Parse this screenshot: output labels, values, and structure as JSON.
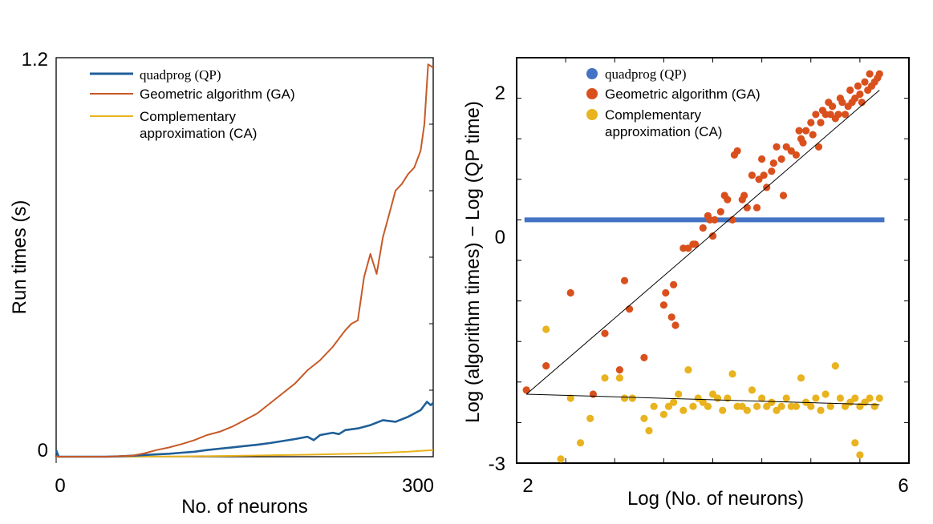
{
  "chart_data": [
    {
      "type": "line",
      "title": "",
      "xlabel": "No. of neurons",
      "ylabel": "Run times (s)",
      "xlim": [
        0,
        300
      ],
      "ylim": [
        0,
        1.2
      ],
      "x_ticks": [
        "0",
        "300"
      ],
      "y_ticks": [
        "0",
        "1.2"
      ],
      "grid": false,
      "legend_placement": "top-left",
      "series": [
        {
          "name": "quadprog (QP)",
          "color": "#1f5f99",
          "x": [
            0,
            2,
            4,
            10,
            20,
            30,
            40,
            50,
            60,
            70,
            80,
            90,
            100,
            110,
            120,
            130,
            140,
            150,
            160,
            170,
            180,
            190,
            200,
            205,
            210,
            220,
            225,
            230,
            240,
            250,
            260,
            270,
            280,
            290,
            295,
            298,
            300
          ],
          "y": [
            0.02,
            0.0,
            0.0,
            0.0,
            0.0,
            0.0,
            0.0,
            0.001,
            0.003,
            0.005,
            0.007,
            0.009,
            0.012,
            0.015,
            0.02,
            0.024,
            0.028,
            0.032,
            0.036,
            0.041,
            0.047,
            0.053,
            0.06,
            0.05,
            0.065,
            0.072,
            0.068,
            0.08,
            0.085,
            0.095,
            0.11,
            0.105,
            0.12,
            0.14,
            0.165,
            0.155,
            0.162
          ]
        },
        {
          "name": "Geometric algorithm (GA)",
          "color": "#c65a28",
          "x": [
            0,
            20,
            40,
            60,
            70,
            80,
            90,
            100,
            110,
            120,
            130,
            140,
            150,
            160,
            170,
            180,
            190,
            200,
            210,
            220,
            230,
            235,
            240,
            245,
            250,
            255,
            260,
            265,
            270,
            275,
            280,
            285,
            290,
            293,
            296,
            300
          ],
          "y": [
            0.0,
            0.0,
            0.0,
            0.003,
            0.01,
            0.02,
            0.028,
            0.038,
            0.05,
            0.065,
            0.075,
            0.09,
            0.11,
            0.13,
            0.16,
            0.19,
            0.22,
            0.26,
            0.29,
            0.33,
            0.38,
            0.4,
            0.41,
            0.54,
            0.61,
            0.55,
            0.66,
            0.73,
            0.8,
            0.82,
            0.85,
            0.87,
            0.92,
            1.0,
            1.18,
            1.17
          ]
        },
        {
          "name": "Complementary approximation (CA)",
          "color": "#e8b31e",
          "x": [
            0,
            50,
            100,
            150,
            200,
            250,
            280,
            300
          ],
          "y": [
            0.0,
            0.0,
            0.001,
            0.003,
            0.006,
            0.01,
            0.015,
            0.02
          ]
        }
      ]
    },
    {
      "type": "scatter",
      "title": "",
      "xlabel": "Log (No. of neurons)",
      "ylabel": "Log (algorithm times) − Log (QP time)",
      "xlim": [
        2,
        6
      ],
      "ylim": [
        -3,
        2
      ],
      "x_ticks": [
        "2",
        "6"
      ],
      "y_ticks": [
        "2",
        "0",
        "-3"
      ],
      "grid": false,
      "legend_placement": "top-left",
      "series": [
        {
          "name": "quadprog (QP)",
          "color": "#4472c4",
          "kind": "hline",
          "y": 0,
          "x_range": [
            2.08,
            5.75
          ]
        },
        {
          "name": "Geometric algorithm (GA)",
          "color": "#d9501d",
          "fit_line": [
            [
              2.1,
              -2.15
            ],
            [
              5.7,
              1.6
            ]
          ],
          "x": [
            2.1,
            2.3,
            2.55,
            2.78,
            2.9,
            3.05,
            3.1,
            3.15,
            3.3,
            3.5,
            3.52,
            3.58,
            3.6,
            3.62,
            3.7,
            3.75,
            3.8,
            3.82,
            3.9,
            3.95,
            3.97,
            4.0,
            4.02,
            4.08,
            4.12,
            4.15,
            4.2,
            4.22,
            4.25,
            4.3,
            4.32,
            4.35,
            4.4,
            4.45,
            4.47,
            4.5,
            4.52,
            4.55,
            4.6,
            4.62,
            4.65,
            4.7,
            4.72,
            4.75,
            4.8,
            4.85,
            4.88,
            4.9,
            4.92,
            4.95,
            5.0,
            5.02,
            5.05,
            5.08,
            5.1,
            5.12,
            5.15,
            5.18,
            5.2,
            5.22,
            5.25,
            5.28,
            5.3,
            5.32,
            5.35,
            5.38,
            5.4,
            5.42,
            5.45,
            5.48,
            5.5,
            5.52,
            5.55,
            5.58,
            5.6,
            5.62,
            5.65,
            5.68,
            5.7
          ],
          "y": [
            -2.1,
            -1.8,
            -0.9,
            -2.15,
            -1.4,
            -1.85,
            -0.75,
            -1.1,
            -1.7,
            -1.05,
            -0.9,
            -1.2,
            -0.8,
            -1.3,
            -0.35,
            -0.35,
            -0.3,
            -0.3,
            -0.1,
            0.05,
            0.0,
            -0.2,
            0.0,
            0.1,
            0.3,
            0.25,
            0.0,
            0.8,
            0.85,
            0.25,
            0.3,
            0.15,
            0.55,
            0.15,
            0.5,
            0.75,
            0.55,
            0.4,
            0.6,
            0.7,
            0.9,
            0.75,
            0.3,
            0.9,
            0.85,
            0.8,
            1.1,
            1.0,
            0.95,
            1.1,
            1.2,
            1.05,
            1.3,
            0.9,
            1.2,
            1.35,
            1.3,
            1.45,
            1.3,
            1.4,
            1.25,
            1.3,
            1.5,
            1.45,
            1.3,
            1.4,
            1.6,
            1.45,
            1.5,
            1.65,
            1.55,
            1.45,
            1.7,
            1.6,
            1.8,
            1.65,
            1.7,
            1.75,
            1.8
          ]
        },
        {
          "name": "Complementary approximation (CA)",
          "color": "#e8b31e",
          "fit_line": [
            [
              2.1,
              -2.15
            ],
            [
              5.7,
              -2.28
            ]
          ],
          "x": [
            2.1,
            2.3,
            2.55,
            2.75,
            2.9,
            3.05,
            3.1,
            3.18,
            3.3,
            3.4,
            3.5,
            3.55,
            3.6,
            3.65,
            3.7,
            3.75,
            3.8,
            3.85,
            3.9,
            3.95,
            4.0,
            4.05,
            4.1,
            4.15,
            4.2,
            4.25,
            4.3,
            4.35,
            4.4,
            4.45,
            4.5,
            4.55,
            4.6,
            4.65,
            4.7,
            4.75,
            4.8,
            4.85,
            4.9,
            4.95,
            5.0,
            5.05,
            5.1,
            5.15,
            5.2,
            5.25,
            5.3,
            5.35,
            5.4,
            5.45,
            5.5,
            5.55,
            5.6,
            5.65,
            5.7,
            2.45,
            2.65,
            3.35,
            5.45,
            5.5
          ],
          "y": [
            -2.1,
            -1.35,
            -2.2,
            -2.45,
            -1.95,
            -1.95,
            -2.2,
            -2.2,
            -2.45,
            -2.3,
            -2.4,
            -2.3,
            -2.25,
            -2.15,
            -2.35,
            -1.85,
            -2.3,
            -2.2,
            -2.25,
            -2.3,
            -2.15,
            -2.2,
            -2.35,
            -2.2,
            -1.9,
            -2.3,
            -2.3,
            -2.35,
            -2.1,
            -2.3,
            -2.2,
            -2.3,
            -2.25,
            -2.35,
            -2.3,
            -2.2,
            -2.3,
            -2.3,
            -1.95,
            -2.25,
            -2.3,
            -2.2,
            -2.35,
            -2.15,
            -2.3,
            -1.8,
            -2.2,
            -2.3,
            -2.25,
            -2.2,
            -2.3,
            -2.25,
            -2.2,
            -2.3,
            -2.2,
            -2.95,
            -2.75,
            -2.6,
            -2.75,
            -2.9
          ]
        }
      ]
    }
  ]
}
